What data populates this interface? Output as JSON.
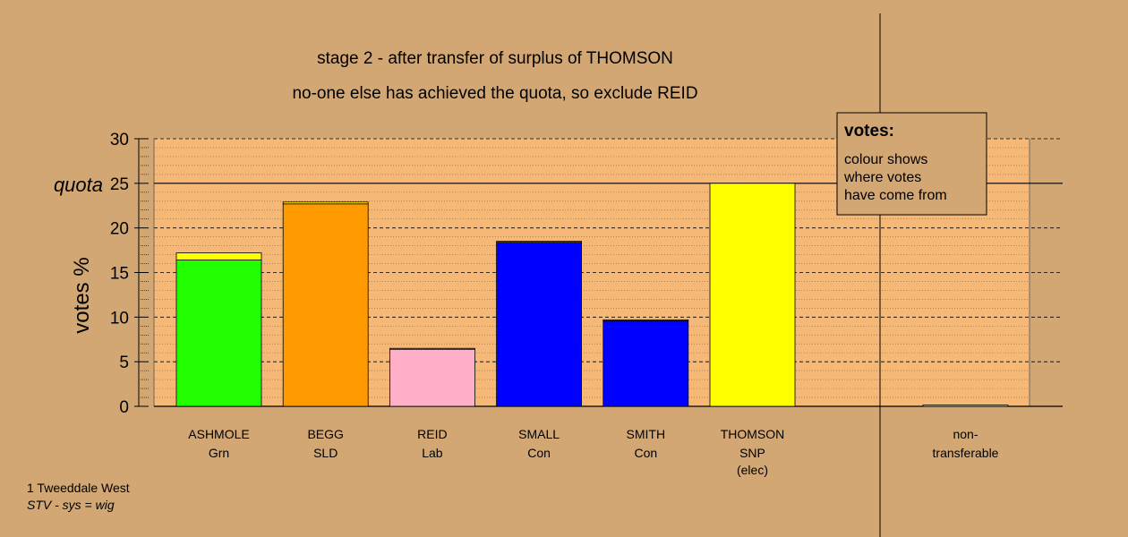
{
  "chart_data": {
    "type": "bar",
    "title": "stage 2 - after transfer of surplus of THOMSON",
    "subtitle": "no-one else has achieved the quota, so exclude REID",
    "ylabel": "votes %",
    "ylim": [
      0,
      30
    ],
    "yticks": [
      0,
      5,
      10,
      15,
      20,
      25,
      30
    ],
    "quota": 25,
    "quota_label": "quota",
    "candidates": [
      {
        "name": "ASHMOLE",
        "party": "Grn",
        "note": "",
        "segments": [
          {
            "value": 16.4,
            "color": "#22FF00"
          },
          {
            "value": 0.8,
            "color": "#FFFF00"
          }
        ]
      },
      {
        "name": "BEGG",
        "party": "SLD",
        "note": "",
        "segments": [
          {
            "value": 22.7,
            "color": "#FF9900"
          },
          {
            "value": 0.2,
            "color": "#FFFF00"
          }
        ]
      },
      {
        "name": "REID",
        "party": "Lab",
        "note": "",
        "segments": [
          {
            "value": 6.4,
            "color": "#FFB0C8"
          },
          {
            "value": 0.1,
            "color": "#FFFF00"
          }
        ]
      },
      {
        "name": "SMALL",
        "party": "Con",
        "note": "",
        "segments": [
          {
            "value": 18.4,
            "color": "#0000FF"
          },
          {
            "value": 0.1,
            "color": "#FFFF00"
          }
        ]
      },
      {
        "name": "SMITH",
        "party": "Con",
        "note": "",
        "segments": [
          {
            "value": 9.6,
            "color": "#0000FF"
          },
          {
            "value": 0.1,
            "color": "#FFFF00"
          }
        ]
      },
      {
        "name": "THOMSON",
        "party": "SNP",
        "note": "(elec)",
        "segments": [
          {
            "value": 25.0,
            "color": "#FFFF00"
          }
        ]
      }
    ],
    "nontransferable": {
      "label1": "non-",
      "label2": "transferable",
      "value": 0.15,
      "color": "#FFFF00"
    },
    "legend": {
      "title": "votes:",
      "line1": "colour shows",
      "line2": "where votes",
      "line3": "have come from",
      "placement": "top-right"
    },
    "footnote1": "1 Tweeddale West",
    "footnote2": "STV - sys = wig",
    "colors": {
      "background": "#D2A774",
      "plot_background": "#F6B876"
    }
  }
}
